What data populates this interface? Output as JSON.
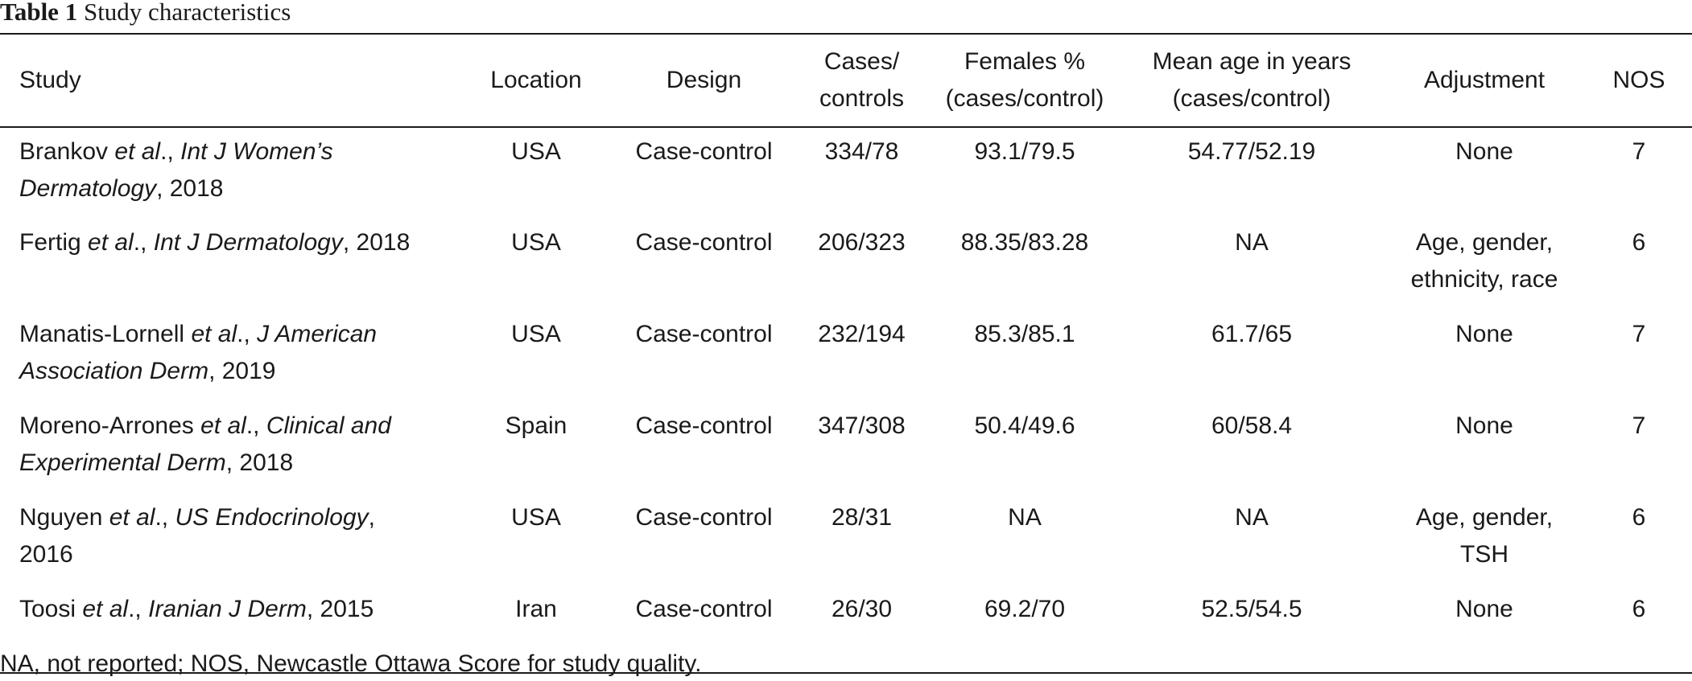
{
  "caption": {
    "label": "Table 1",
    "title": "Study characteristics"
  },
  "table": {
    "headers": {
      "study": "Study",
      "location": "Location",
      "design": "Design",
      "cases_line1": "Cases/",
      "cases_line2": "controls",
      "females_line1": "Females %",
      "females_line2": "(cases/control)",
      "age_line1": "Mean age in years",
      "age_line2": "(cases/control)",
      "adjustment": "Adjustment",
      "nos": "NOS"
    },
    "rows": [
      {
        "author": "Brankov ",
        "etal": "et al",
        "sep": "., ",
        "journal_a": "Int J Women’s",
        "journal_b": "Dermatology",
        "year": ", 2018",
        "location": "USA",
        "design": "Case-control",
        "cases": "334/78",
        "females": "93.1/79.5",
        "age": "54.77/52.19",
        "adj_a": "None",
        "adj_b": "",
        "nos": "7"
      },
      {
        "author": "Fertig ",
        "etal": "et al",
        "sep": "., ",
        "journal_a": "Int J Dermatology",
        "journal_b": "",
        "year": ", 2018",
        "location": "USA",
        "design": "Case-control",
        "cases": "206/323",
        "females": "88.35/83.28",
        "age": "NA",
        "adj_a": "Age, gender,",
        "adj_b": "ethnicity, race",
        "nos": "6"
      },
      {
        "author": "Manatis-Lornell ",
        "etal": "et al",
        "sep": "., ",
        "journal_a": "J American",
        "journal_b": "Association Derm",
        "year": ", 2019",
        "location": "USA",
        "design": "Case-control",
        "cases": "232/194",
        "females": "85.3/85.1",
        "age": "61.7/65",
        "adj_a": "None",
        "adj_b": "",
        "nos": "7"
      },
      {
        "author": "Moreno-Arrones ",
        "etal": "et al",
        "sep": "., ",
        "journal_a": "Clinical and",
        "journal_b": "Experimental Derm",
        "year": ", 2018",
        "location": "Spain",
        "design": "Case-control",
        "cases": "347/308",
        "females": "50.4/49.6",
        "age": "60/58.4",
        "adj_a": "None",
        "adj_b": "",
        "nos": "7"
      },
      {
        "author": "Nguyen ",
        "etal": "et al",
        "sep": "., ",
        "journal_a": "US Endocrinology",
        "journal_b": "",
        "year": ",",
        "year_b": "2016",
        "location": "USA",
        "design": "Case-control",
        "cases": "28/31",
        "females": "NA",
        "age": "NA",
        "adj_a": "Age, gender,",
        "adj_b": "TSH",
        "nos": "6"
      },
      {
        "author": "Toosi ",
        "etal": "et al",
        "sep": "., ",
        "journal_a": "Iranian J Derm",
        "journal_b": "",
        "year": ", 2015",
        "location": "Iran",
        "design": "Case-control",
        "cases": "26/30",
        "females": "69.2/70",
        "age": "52.5/54.5",
        "adj_a": "None",
        "adj_b": "",
        "nos": "6"
      }
    ]
  },
  "footnote": "NA, not reported; NOS, Newcastle Ottawa Score for study quality."
}
